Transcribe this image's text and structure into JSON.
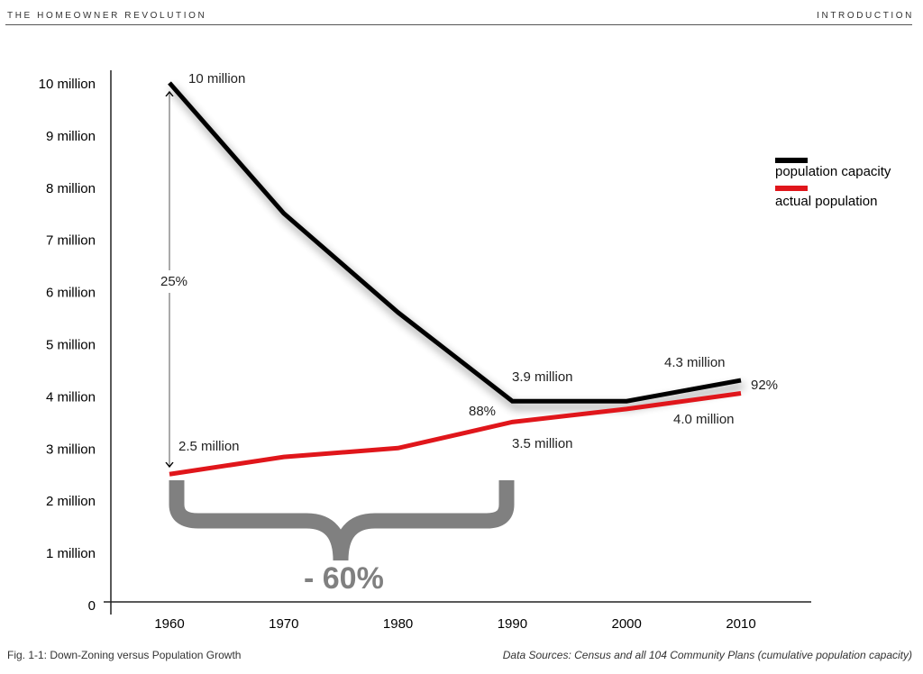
{
  "header": {
    "left": "THE HOMEOWNER REVOLUTION",
    "right": "INTRODUCTION"
  },
  "footer": {
    "caption": "Fig. 1-1: Down-Zoning versus Population Growth",
    "sources": "Data Sources: Census and all 104 Community Plans (cumulative population capacity)"
  },
  "chart_data": {
    "type": "line",
    "title": "",
    "xlabel": "",
    "ylabel": "",
    "x": [
      1960,
      1970,
      1980,
      1990,
      2000,
      2010
    ],
    "xticks": [
      "1960",
      "1970",
      "1980",
      "1990",
      "2000",
      "2010"
    ],
    "yticks": [
      "0",
      "1 million",
      "2 million",
      "3 million",
      "4 million",
      "5 million",
      "6 million",
      "7 million",
      "8 million",
      "9 million",
      "10 million"
    ],
    "ylim": [
      0,
      10
    ],
    "grid": false,
    "legend_position": "right",
    "series": [
      {
        "name": "population capacity",
        "color": "#000000",
        "values": [
          10,
          7.5,
          5.6,
          3.9,
          3.9,
          4.3
        ]
      },
      {
        "name": "actual population",
        "color": "#e0161b",
        "values": [
          2.5,
          2.83,
          3.0,
          3.5,
          3.75,
          4.05
        ]
      }
    ],
    "annotations": {
      "cap1960": "10 million",
      "pop1960": "2.5 million",
      "cap1990": "3.9 million",
      "pop1990": "3.5 million",
      "cap2010": "4.3 million",
      "pop2010": "4.0 million",
      "pct1960": "25%",
      "pct1990": "88%",
      "pct2010": "92%",
      "brace": "- 60%"
    },
    "brace_color": "#808080"
  }
}
